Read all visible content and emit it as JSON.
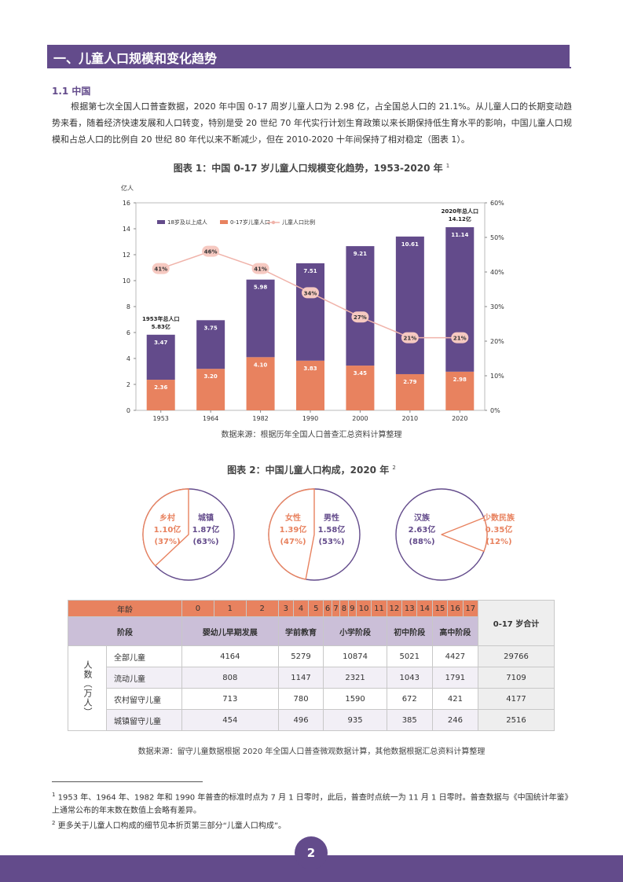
{
  "section": {
    "title": "一、儿童人口规模和变化趋势"
  },
  "subsection": {
    "title": "1.1 中国"
  },
  "intro": "根据第七次全国人口普查数据，2020 年中国 0-17 周岁儿童人口为 2.98 亿，占全国总人口的 21.1%。从儿童人口的长期变动趋势来看，随着经济快速发展和人口转变，特别是受 20 世纪 70 年代实行计划生育政策以来长期保持低生育水平的影响，中国儿童人口规模和占总人口的比例自 20 世纪 80 年代以来不断减少，但在 2010-2020 十年间保持了相对稳定（图表 1）。",
  "figure1": {
    "caption": "图表 1：中国 0-17 岁儿童人口规模变化趋势，1953-2020 年",
    "note_ref": "1",
    "source": "数据来源：根据历年全国人口普查汇总资料计算整理"
  },
  "chart_data": {
    "type": "bar",
    "stacked": true,
    "y_unit": "亿人",
    "categories": [
      "1953",
      "1964",
      "1982",
      "1990",
      "2000",
      "2010",
      "2020"
    ],
    "series": [
      {
        "name": "0-17岁儿童人口",
        "values": [
          2.36,
          3.2,
          4.1,
          3.83,
          3.45,
          2.79,
          2.98
        ],
        "labels": [
          "2.36",
          "3.20",
          "4.10",
          "3.83",
          "3.45",
          "2.79",
          "2.98"
        ],
        "color": "#e8825f"
      },
      {
        "name": "18岁及以上成人",
        "values": [
          3.47,
          3.75,
          5.98,
          7.51,
          9.21,
          10.61,
          11.14
        ],
        "labels": [
          "3.47",
          "3.75",
          "5.98",
          "7.51",
          "9.21",
          "10.61",
          "11.14"
        ],
        "color": "#634b8b"
      },
      {
        "name": "儿童人口比例",
        "type": "line",
        "axis": "right",
        "values": [
          41,
          46,
          41,
          34,
          27,
          21,
          21
        ],
        "labels": [
          "41%",
          "46%",
          "41%",
          "34%",
          "27%",
          "21%",
          "21%"
        ],
        "color": "#f0b3aa"
      }
    ],
    "legend_order": [
      "18岁及以上成人",
      "0-17岁儿童人口",
      "儿童人口比例"
    ],
    "y_ticks": [
      "0",
      "2",
      "4",
      "6",
      "8",
      "10",
      "12",
      "14",
      "16"
    ],
    "ylim": [
      0,
      16
    ],
    "y2_ticks": [
      "0%",
      "10%",
      "20%",
      "30%",
      "40%",
      "50%",
      "60%"
    ],
    "y2lim": [
      0,
      60
    ],
    "annotations": [
      {
        "category": "1953",
        "line1": "1953年总人口",
        "line2": "5.83亿"
      },
      {
        "category": "2020",
        "line1": "2020年总人口",
        "line2": "14.12亿"
      }
    ]
  },
  "figure2": {
    "caption": "图表 2：中国儿童人口构成，2020 年",
    "note_ref": "2",
    "pies": [
      {
        "share": 0.37,
        "small": {
          "name": "乡村",
          "value": "1.10亿",
          "pct": "(37%)"
        },
        "large": {
          "name": "城镇",
          "value": "1.87亿",
          "pct": "(63%)"
        }
      },
      {
        "share": 0.47,
        "small": {
          "name": "女性",
          "value": "1.39亿",
          "pct": "(47%)"
        },
        "large": {
          "name": "男性",
          "value": "1.58亿",
          "pct": "(53%)"
        }
      },
      {
        "share": 0.12,
        "small": {
          "name": "少数民族",
          "value": "0.35亿",
          "pct": "(12%)"
        },
        "large": {
          "name": "汉族",
          "value": "2.63亿",
          "pct": "(88%)"
        }
      }
    ],
    "colors": {
      "orange": "#e8825f",
      "purple": "#634b8b"
    }
  },
  "table": {
    "age_label": "年龄",
    "ages": [
      "0",
      "1",
      "2",
      "3",
      "4",
      "5",
      "6",
      "7",
      "8",
      "9",
      "10",
      "11",
      "12",
      "13",
      "14",
      "15",
      "16",
      "17"
    ],
    "total_label": "0-17 岁合计",
    "stage_label": "阶段",
    "stages": [
      "婴幼儿早期发展",
      "学前教育",
      "小学阶段",
      "初中阶段",
      "高中阶段"
    ],
    "side_label": "人数（万人）",
    "rows": [
      {
        "label": "全部儿童",
        "values": [
          "4164",
          "5279",
          "10874",
          "5021",
          "4427",
          "29766"
        ]
      },
      {
        "label": "流动儿童",
        "values": [
          "808",
          "1147",
          "2321",
          "1043",
          "1791",
          "7109"
        ]
      },
      {
        "label": "农村留守儿童",
        "values": [
          "713",
          "780",
          "1590",
          "672",
          "421",
          "4177"
        ]
      },
      {
        "label": "城镇留守儿童",
        "values": [
          "454",
          "496",
          "935",
          "385",
          "246",
          "2516"
        ]
      }
    ],
    "source": "数据来源：留守儿童数据根据 2020 年全国人口普查微观数据计算，其他数据根据汇总资料计算整理"
  },
  "footnotes": [
    {
      "num": "1",
      "text": "1953 年、1964 年、1982 年和 1990 年普查的标准时点为 7 月 1 日零时，此后，普查时点统一为 11 月 1 日零时。普查数据与《中国统计年鉴》上通常公布的年末数在数值上会略有差异。"
    },
    {
      "num": "2",
      "text": "更多关于儿童人口构成的细节见本折页第三部分“儿童人口构成”。"
    }
  ],
  "page_number": "2"
}
